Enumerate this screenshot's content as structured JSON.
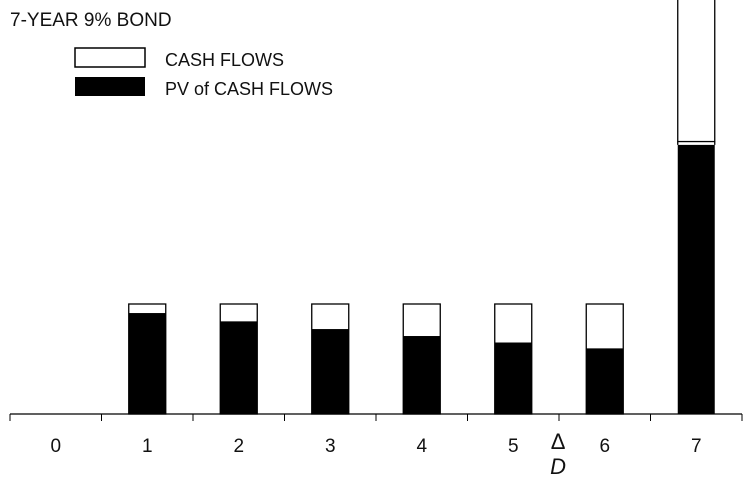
{
  "chart_data": {
    "type": "bar",
    "title": "7-YEAR 9% BOND",
    "xlabel": "",
    "ylabel": "",
    "categories": [
      "0",
      "1",
      "2",
      "3",
      "4",
      "5",
      "6",
      "7"
    ],
    "series": [
      {
        "name": "CASH FLOWS",
        "values": [
          null,
          9,
          9,
          9,
          9,
          9,
          9,
          109
        ],
        "style": "outline"
      },
      {
        "name": "PV of CASH FLOWS",
        "values": [
          null,
          8.26,
          7.58,
          6.95,
          6.38,
          5.85,
          5.37,
          59.63
        ],
        "style": "filled"
      }
    ],
    "y_axis_break": {
      "below": 20,
      "resumes_at": 65
    },
    "duration_marker": {
      "symbol": "Δ",
      "label": "D",
      "value": 5.49
    },
    "legend_position": "top-left",
    "grid": false,
    "colors": {
      "filled": "#000000",
      "outline": "#000000",
      "background": "#ffffff"
    }
  }
}
